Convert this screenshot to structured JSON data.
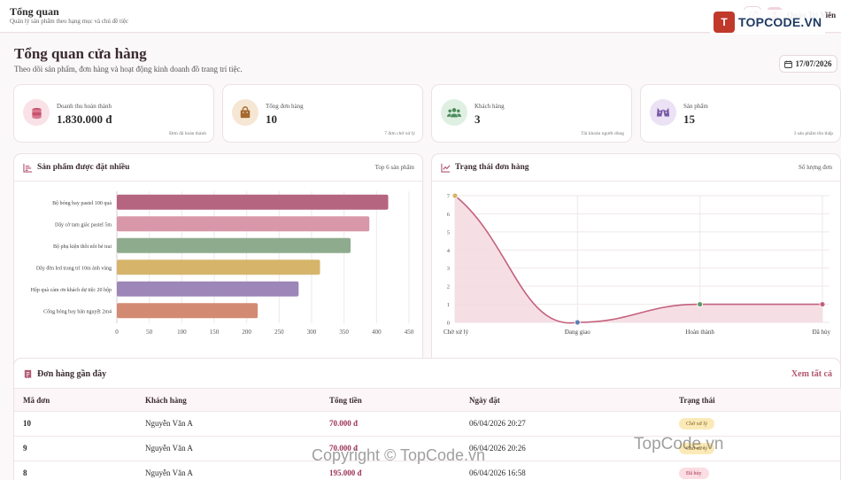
{
  "topbar": {
    "title": "Tổng quan",
    "subtitle": "Quản lý sản phẩm theo hạng mục và chủ đề tiệc",
    "user_name": "Quản Trị Viên"
  },
  "logo": {
    "mark": "T",
    "text": "TOPCODE.VN"
  },
  "page": {
    "title": "Tổng quan cửa hàng",
    "subtitle": "Theo dõi sản phẩm, đơn hàng và hoạt động kinh doanh đồ trang trí tiệc.",
    "date": "17/07/2026"
  },
  "stats": [
    {
      "label": "Doanh thu hoàn thành",
      "value": "1.830.000 đ",
      "note": "Đơn đã hoàn thành",
      "icon": "coins-icon",
      "color": "#c7506f",
      "bg": "#f9e1e8"
    },
    {
      "label": "Tổng đơn hàng",
      "value": "10",
      "note": "7 đơn chờ xử lý",
      "icon": "shopping-bag-icon",
      "color": "#a3692d",
      "bg": "#f6e6d4"
    },
    {
      "label": "Khách hàng",
      "value": "3",
      "note": "Tài khoản người dùng",
      "icon": "users-icon",
      "color": "#4c8c5c",
      "bg": "#dff0e3"
    },
    {
      "label": "Sản phẩm",
      "value": "15",
      "note": "3 sản phẩm tồn thấp",
      "icon": "gift-icon",
      "color": "#7b5aa6",
      "bg": "#ebe2f5"
    }
  ],
  "top_products": {
    "title": "Sản phẩm được đặt nhiều",
    "right_label": "Top 6 sản phẩm"
  },
  "order_status": {
    "title": "Trạng thái đơn hàng",
    "right_label": "Số lượng đơn"
  },
  "chart_data": [
    {
      "type": "bar",
      "orientation": "horizontal",
      "categories": [
        "Bộ bóng bay pastel 100 quả",
        "Dây cờ tam giác pastel 5m",
        "Bộ phụ kiện thôi nôi bé trai",
        "Dây đèn led trang trí 10m ánh vàng",
        "Hộp quà cảm ơn khách dự tiệc 20 hộp",
        "Cổng bóng bay bán nguyệt 2m4"
      ],
      "values": [
        418,
        389,
        360,
        313,
        280,
        217
      ],
      "colors": [
        "#b5657f",
        "#d898aa",
        "#8fab8e",
        "#d6b56b",
        "#9d86b8",
        "#d38a73"
      ],
      "xlim": [
        0,
        450
      ],
      "xticks": [
        0,
        50,
        100,
        150,
        200,
        250,
        300,
        350,
        400,
        450
      ],
      "grid": true
    },
    {
      "type": "area",
      "categories": [
        "Chờ xử lý",
        "Đang giao",
        "Hoàn thành",
        "Đã hủy"
      ],
      "values": [
        7,
        0,
        1,
        1
      ],
      "ylim": [
        0,
        7
      ],
      "yticks": [
        0,
        1,
        2,
        3,
        4,
        5,
        6,
        7
      ],
      "line_color": "#c4607e",
      "fill_color": "#f3d9e1",
      "point_colors": [
        "#d6b56b",
        "#5e7fb5",
        "#5d9b66",
        "#c4607e"
      ],
      "grid": true
    }
  ],
  "orders": {
    "title": "Đơn hàng gần đây",
    "see_all": "Xem tất cả",
    "columns": [
      "Mã đơn",
      "Khách hàng",
      "Tổng tiền",
      "Ngày đặt",
      "Trạng thái"
    ],
    "rows": [
      {
        "id": "10",
        "customer": "Nguyễn Văn A",
        "total": "70.000 đ",
        "date": "06/04/2026 20:27",
        "status": "Chờ xử lý",
        "status_type": "pending"
      },
      {
        "id": "9",
        "customer": "Nguyễn Văn A",
        "total": "70.000 đ",
        "date": "06/04/2026 20:26",
        "status": "Chờ xử lý",
        "status_type": "pending"
      },
      {
        "id": "8",
        "customer": "Nguyễn Văn A",
        "total": "195.000 đ",
        "date": "06/04/2026 16:58",
        "status": "Đã hủy",
        "status_type": "cancel"
      }
    ]
  },
  "watermarks": {
    "center": "Copyright © TopCode.vn",
    "right": "TopCode.vn"
  }
}
